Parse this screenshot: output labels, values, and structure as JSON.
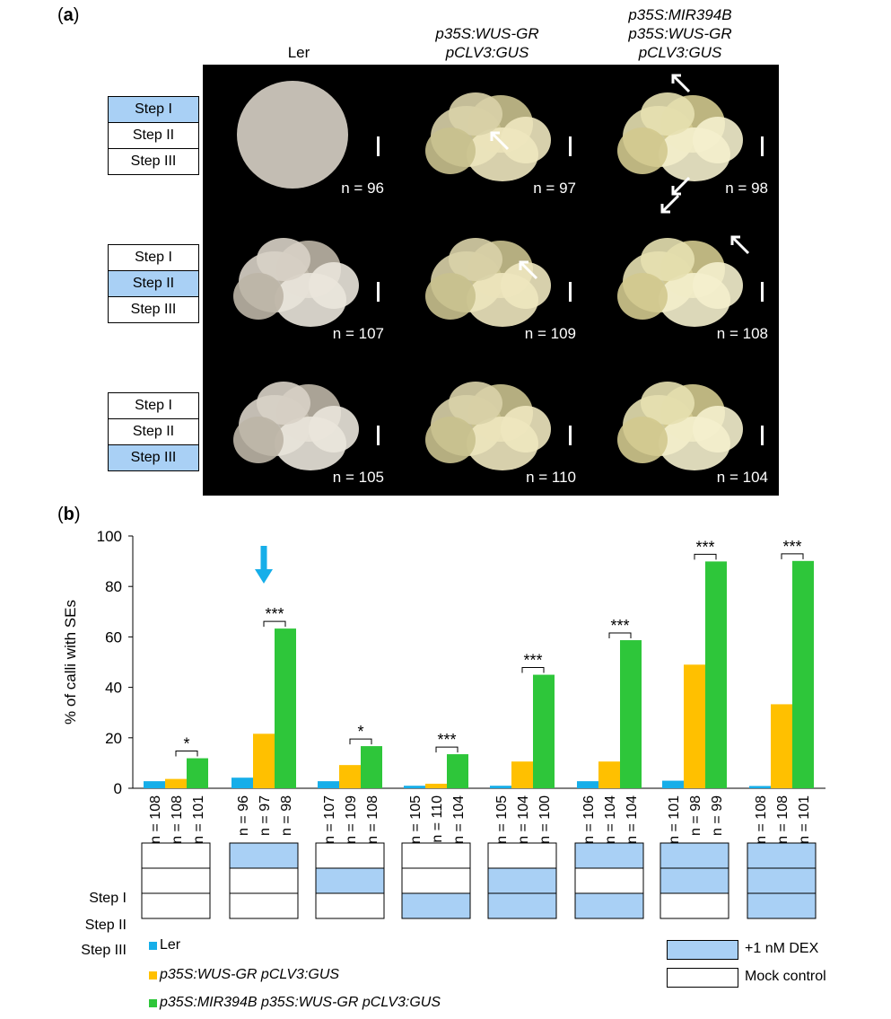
{
  "panel_a": {
    "label_open": "(",
    "label_letter": "a",
    "label_close": ")",
    "columns": [
      {
        "title_lines": [
          "Ler"
        ],
        "italic": false
      },
      {
        "title_lines": [
          "p35S:WUS-GR",
          "pCLV3:GUS"
        ],
        "italic": true
      },
      {
        "title_lines": [
          "p35S:MIR394B",
          "p35S:WUS-GR",
          "pCLV3:GUS"
        ],
        "italic": true
      }
    ],
    "step_labels": [
      "Step I",
      "Step II",
      "Step III"
    ],
    "rows": [
      {
        "active_step": 0,
        "n": [
          "n = 96",
          "n = 97",
          "n = 98"
        ]
      },
      {
        "active_step": 1,
        "n": [
          "n = 107",
          "n = 109",
          "n = 108"
        ]
      },
      {
        "active_step": 2,
        "n": [
          "n = 105",
          "n = 110",
          "n = 104"
        ]
      }
    ]
  },
  "panel_b": {
    "label_open": "(",
    "label_letter": "b",
    "label_close": ")"
  },
  "chart_data": {
    "type": "bar",
    "ylabel": "% of calli with SEs",
    "ylim": [
      0,
      100
    ],
    "yticks": [
      0,
      20,
      40,
      60,
      80,
      100
    ],
    "series": [
      {
        "name": "Ler",
        "color": "#16aee9",
        "values": [
          2.8,
          4.2,
          2.8,
          1.0,
          1.0,
          2.8,
          3.0,
          0.9
        ]
      },
      {
        "name": "p35S:WUS-GR pCLV3:GUS",
        "color": "#ffc000",
        "values": [
          3.7,
          21.6,
          9.2,
          1.8,
          10.6,
          10.6,
          49.0,
          33.3
        ]
      },
      {
        "name": "p35S:MIR394B p35S:WUS-GR pCLV3:GUS",
        "color": "#2ec63a",
        "values": [
          11.9,
          63.3,
          16.7,
          13.5,
          45.0,
          58.7,
          89.9,
          90.1
        ]
      }
    ],
    "n_labels": [
      [
        "n = 108",
        "n = 108",
        "n = 101"
      ],
      [
        "n = 96",
        "n = 97",
        "n = 98"
      ],
      [
        "n = 107",
        "n = 109",
        "n = 108"
      ],
      [
        "n = 105",
        "n = 110",
        "n = 104"
      ],
      [
        "n = 105",
        "n = 104",
        "n = 100"
      ],
      [
        "n = 106",
        "n = 104",
        "n = 104"
      ],
      [
        "n = 101",
        "n = 98",
        "n = 99"
      ],
      [
        "n = 108",
        "n = 108",
        "n = 101"
      ]
    ],
    "significance": [
      "*",
      "***",
      "*",
      "***",
      "***",
      "***",
      "***",
      "***"
    ],
    "highlight_group": 1,
    "step_labels": [
      "Step I",
      "Step II",
      "Step III"
    ],
    "dex_pattern": [
      [
        false,
        false,
        false
      ],
      [
        true,
        false,
        false
      ],
      [
        false,
        true,
        false
      ],
      [
        false,
        false,
        true
      ],
      [
        false,
        true,
        true
      ],
      [
        true,
        false,
        true
      ],
      [
        true,
        true,
        false
      ],
      [
        true,
        true,
        true
      ]
    ],
    "legend": {
      "series_names": [
        "Ler",
        "p35S:WUS-GR pCLV3:GUS",
        "p35S:MIR394B p35S:WUS-GR pCLV3:GUS"
      ],
      "treatment_dex": "+1 nM DEX",
      "treatment_mock": "Mock control"
    }
  },
  "colors": {
    "dex": "#a9d0f5",
    "arrow": "#16aee9",
    "photo_bg": "#000000"
  }
}
